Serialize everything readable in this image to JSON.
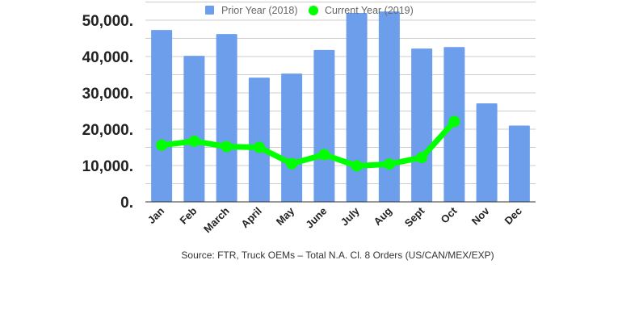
{
  "chart_data": {
    "type": "bar",
    "title": "",
    "xlabel": "",
    "ylabel": "",
    "ylim": [
      0,
      55000
    ],
    "grid": true,
    "legend_position": "top",
    "categories": [
      "Jan",
      "Feb",
      "March",
      "April",
      "May",
      "June",
      "July",
      "Aug",
      "Sept",
      "Oct",
      "Nov",
      "Dec"
    ],
    "yticks": [
      0,
      10000,
      20000,
      30000,
      40000,
      50000
    ],
    "ytick_labels": [
      "0.",
      "10,000.",
      "20,000.",
      "30,000.",
      "40,000.",
      "50,000."
    ],
    "series": [
      {
        "name": "Prior Year (2018)",
        "type": "bar",
        "color": "#6d9eeb",
        "values": [
          47300,
          40200,
          46200,
          34200,
          35300,
          41800,
          52000,
          52400,
          42200,
          42600,
          27100,
          21000
        ]
      },
      {
        "name": "Current Year (2019)",
        "type": "line",
        "color": "#00ff00",
        "values": [
          15600,
          16700,
          15200,
          15000,
          10500,
          13000,
          9900,
          10400,
          12200,
          22100,
          null,
          null
        ]
      }
    ],
    "source": "Source: FTR, Truck OEMs – Total N.A. Cl. 8 Orders (US/CAN/MEX/EXP)"
  }
}
